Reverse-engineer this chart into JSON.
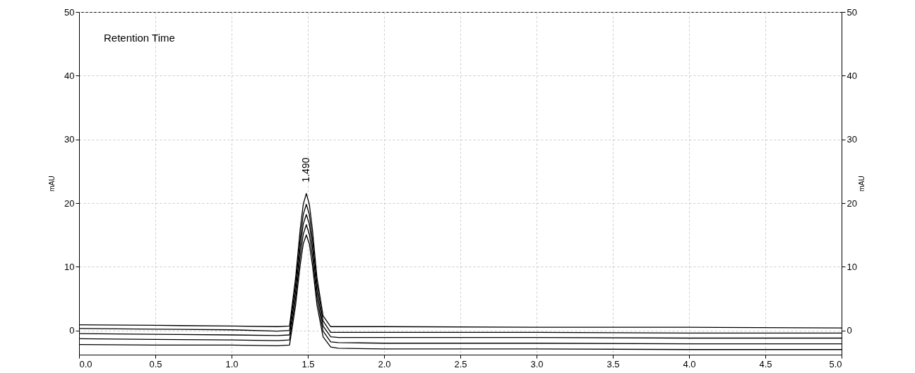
{
  "chart_data": {
    "type": "line",
    "ylabel": "mAU",
    "y2label": "mAU",
    "annotations": [
      "Retention Time",
      {
        "text": "1.490",
        "x": 1.49,
        "y": 21.5
      }
    ],
    "x": [
      0,
      0.5,
      1.0,
      1.3,
      1.38,
      1.42,
      1.45,
      1.47,
      1.49,
      1.51,
      1.53,
      1.56,
      1.6,
      1.65,
      1.7,
      2.0,
      3.0,
      4.0,
      5.0
    ],
    "series": [
      {
        "color": "#000000",
        "values": [
          0.9,
          0.8,
          0.7,
          0.6,
          0.7,
          8.3,
          15.9,
          19.8,
          21.5,
          19.8,
          15.9,
          8.3,
          2.3,
          0.6,
          0.6,
          0.6,
          0.5,
          0.5,
          0.4
        ]
      },
      {
        "color": "#000000",
        "values": [
          0.3,
          0.2,
          0.1,
          -0.1,
          0,
          7.3,
          14.4,
          18.2,
          19.8,
          18.2,
          14.4,
          7.3,
          1.5,
          -0.3,
          -0.3,
          -0.3,
          -0.3,
          -0.4,
          -0.4
        ]
      },
      {
        "color": "#000000",
        "values": [
          -0.5,
          -0.6,
          -0.7,
          -0.8,
          -0.7,
          6.2,
          13.1,
          16.7,
          18.2,
          16.7,
          13.1,
          6.2,
          0.7,
          -1.0,
          -1.1,
          -1.1,
          -1.1,
          -1.2,
          -1.2
        ]
      },
      {
        "color": "#000000",
        "values": [
          -1.3,
          -1.4,
          -1.5,
          -1.6,
          -1.5,
          5.1,
          11.7,
          15.1,
          16.6,
          15.1,
          11.7,
          5.1,
          -0.1,
          -1.8,
          -1.9,
          -2.0,
          -2.0,
          -2.1,
          -2.1
        ]
      },
      {
        "color": "#000000",
        "values": [
          -2.2,
          -2.3,
          -2.3,
          -2.4,
          -2.3,
          4.0,
          10.3,
          13.6,
          15.0,
          13.6,
          10.3,
          4.0,
          -1.0,
          -2.6,
          -2.8,
          -2.9,
          -2.9,
          -3.0,
          -3.0
        ]
      }
    ],
    "xlim": [
      0,
      5
    ],
    "xticks": [
      {
        "value": 0,
        "label": "0.0"
      },
      {
        "value": 0.5,
        "label": "0.5"
      },
      {
        "value": 1,
        "label": "1.0"
      },
      {
        "value": 1.5,
        "label": "1.5"
      },
      {
        "value": 2,
        "label": "2.0"
      },
      {
        "value": 2.5,
        "label": "2.5"
      },
      {
        "value": 3,
        "label": "3.0"
      },
      {
        "value": 3.5,
        "label": "3.5"
      },
      {
        "value": 4,
        "label": "4.0"
      },
      {
        "value": 4.5,
        "label": "4.5"
      },
      {
        "value": 5,
        "label": "5.0"
      }
    ],
    "ylim": [
      -3.8,
      50
    ],
    "yticks": [
      0,
      10,
      20,
      30,
      40,
      50
    ],
    "y2lim": [
      -3.8,
      50
    ],
    "y2ticks": [
      0,
      10,
      20,
      30,
      40,
      50
    ],
    "grid": true,
    "line_style": "solid"
  }
}
